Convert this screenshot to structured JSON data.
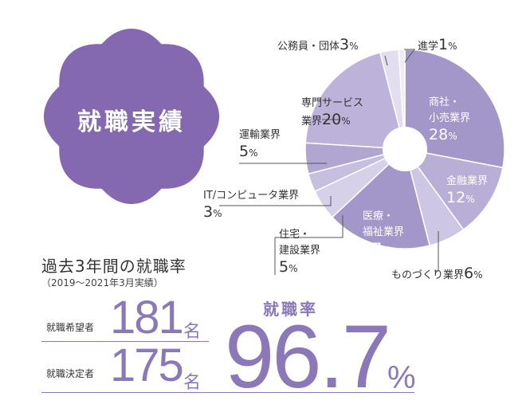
{
  "badge": {
    "title": "就職実績"
  },
  "chart_data": {
    "type": "pie",
    "slices": [
      {
        "label_lines": [
          "商社・",
          "小売業界"
        ],
        "value": 28
      },
      {
        "label_lines": [
          "金融業界"
        ],
        "value": 12
      },
      {
        "label_lines": [
          "ものづくり業界"
        ],
        "value": 6
      },
      {
        "label_lines": [
          "医療・",
          "福祉業界"
        ],
        "value": 17
      },
      {
        "label_lines": [
          "住宅・",
          "建設業界"
        ],
        "value": 5
      },
      {
        "label_lines": [
          "IT/コンピュータ業界"
        ],
        "value": 3
      },
      {
        "label_lines": [
          "運輸業界"
        ],
        "value": 5
      },
      {
        "label_lines": [
          "専門サービス",
          "業界"
        ],
        "value": 20
      },
      {
        "label_lines": [
          "公務員・団体"
        ],
        "value": 3
      },
      {
        "label_lines": [
          "進学"
        ],
        "value": 1
      }
    ],
    "unit": "%",
    "colors": [
      "#a397c9",
      "#b8aed6",
      "#cdc6e4",
      "#a397c9",
      "#d6d0e8",
      "#c7bfe0",
      "#b1a6d2",
      "#bdb3da",
      "#e2ddef",
      "#eeebf6"
    ]
  },
  "stats": {
    "title": "過去3年間の就職率",
    "subtitle": "（2019〜2021年3月実績）",
    "applicants_label": "就職希望者",
    "applicants_value": "181",
    "applicants_unit": "名",
    "employed_label": "就職決定者",
    "employed_value": "175",
    "employed_unit": "名",
    "rate_title": "就職率",
    "rate_value": "96.7",
    "rate_unit": "%"
  }
}
